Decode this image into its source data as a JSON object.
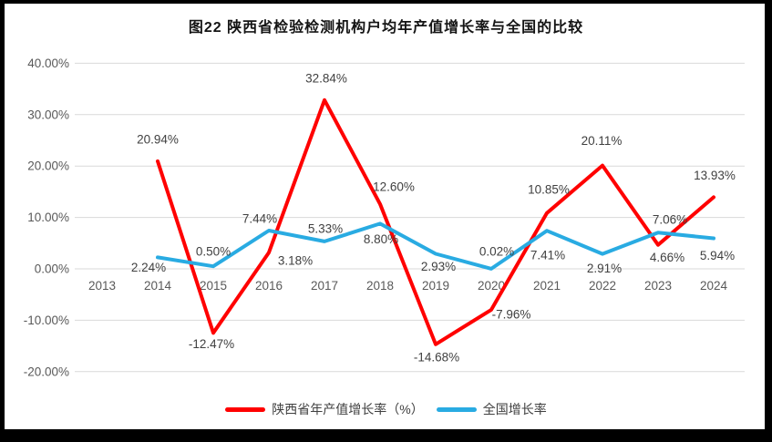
{
  "frame": {
    "background": "#000000",
    "panel_background": "#ffffff"
  },
  "colors": {
    "grid": "#d9d9d9",
    "tick_text": "#595959",
    "data_label_text": "#404040",
    "title_text": "#141414",
    "series_red": "#ff0000",
    "series_blue": "#29abe2"
  },
  "chart_data": {
    "type": "line",
    "title": "图22 陕西省检验检测机构户均年产值增长率与全国的比较",
    "x_labels": [
      "2013",
      "2014",
      "2015",
      "2016",
      "2017",
      "2018",
      "2019",
      "2020",
      "2021",
      "2022",
      "2023",
      "2024"
    ],
    "y_ticks": [
      "40.00%",
      "30.00%",
      "20.00%",
      "10.00%",
      "0.00%",
      "-10.00%",
      "-20.00%"
    ],
    "ylim": [
      -20,
      40
    ],
    "grid": true,
    "legend_position": "bottom",
    "series": [
      {
        "name": "陕西省年产值增长率（%）",
        "color": "#ff0000",
        "values": [
          null,
          20.94,
          -12.47,
          3.18,
          32.84,
          12.6,
          -14.68,
          -7.96,
          10.85,
          20.11,
          4.66,
          13.93
        ],
        "point_labels": [
          "",
          "20.94%",
          "-12.47%",
          "3.18%",
          "32.84%",
          "12.60%",
          "-14.68%",
          "-7.96%",
          "10.85%",
          "20.11%",
          "4.66%",
          "13.93%"
        ]
      },
      {
        "name": "全国增长率",
        "color": "#29abe2",
        "values": [
          null,
          2.24,
          0.5,
          7.44,
          5.33,
          8.8,
          2.93,
          0.02,
          7.41,
          2.91,
          7.06,
          5.94
        ],
        "point_labels": [
          "",
          "2.24%",
          "0.50%",
          "7.44%",
          "5.33%",
          "8.80%",
          "2.93%",
          "0.02%",
          "7.41%",
          "2.91%",
          "7.06%",
          "5.94%"
        ]
      }
    ]
  }
}
